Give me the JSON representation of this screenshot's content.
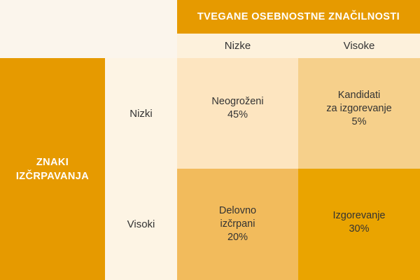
{
  "header": {
    "top_title": "TVEGANE OSEBNOSTNE ZNAČILNOSTI",
    "side_title_line1": "ZNAKI",
    "side_title_line2": "IZČRPAVANJA"
  },
  "columns": {
    "low": "Nizke",
    "high": "Visoke"
  },
  "rows": {
    "low": "Nizki",
    "high": "Visoki"
  },
  "quadrants": {
    "low_low": {
      "line1": "Neogroženi",
      "line2": "45%"
    },
    "low_high": {
      "line1": "Kandidati",
      "line2": "za izgorevanje",
      "line3": "5%"
    },
    "high_low": {
      "line1": "Delovno",
      "line2": "izčrpani",
      "line3": "20%"
    },
    "high_high": {
      "line1": "Izgorevanje",
      "line2": "30%"
    }
  },
  "colors": {
    "header": "#e69a00",
    "quadrant_low_low": "#fde5c0",
    "quadrant_low_high": "#f6d08b",
    "quadrant_high_low": "#f2bb5c",
    "quadrant_high_high": "#eaa400"
  }
}
